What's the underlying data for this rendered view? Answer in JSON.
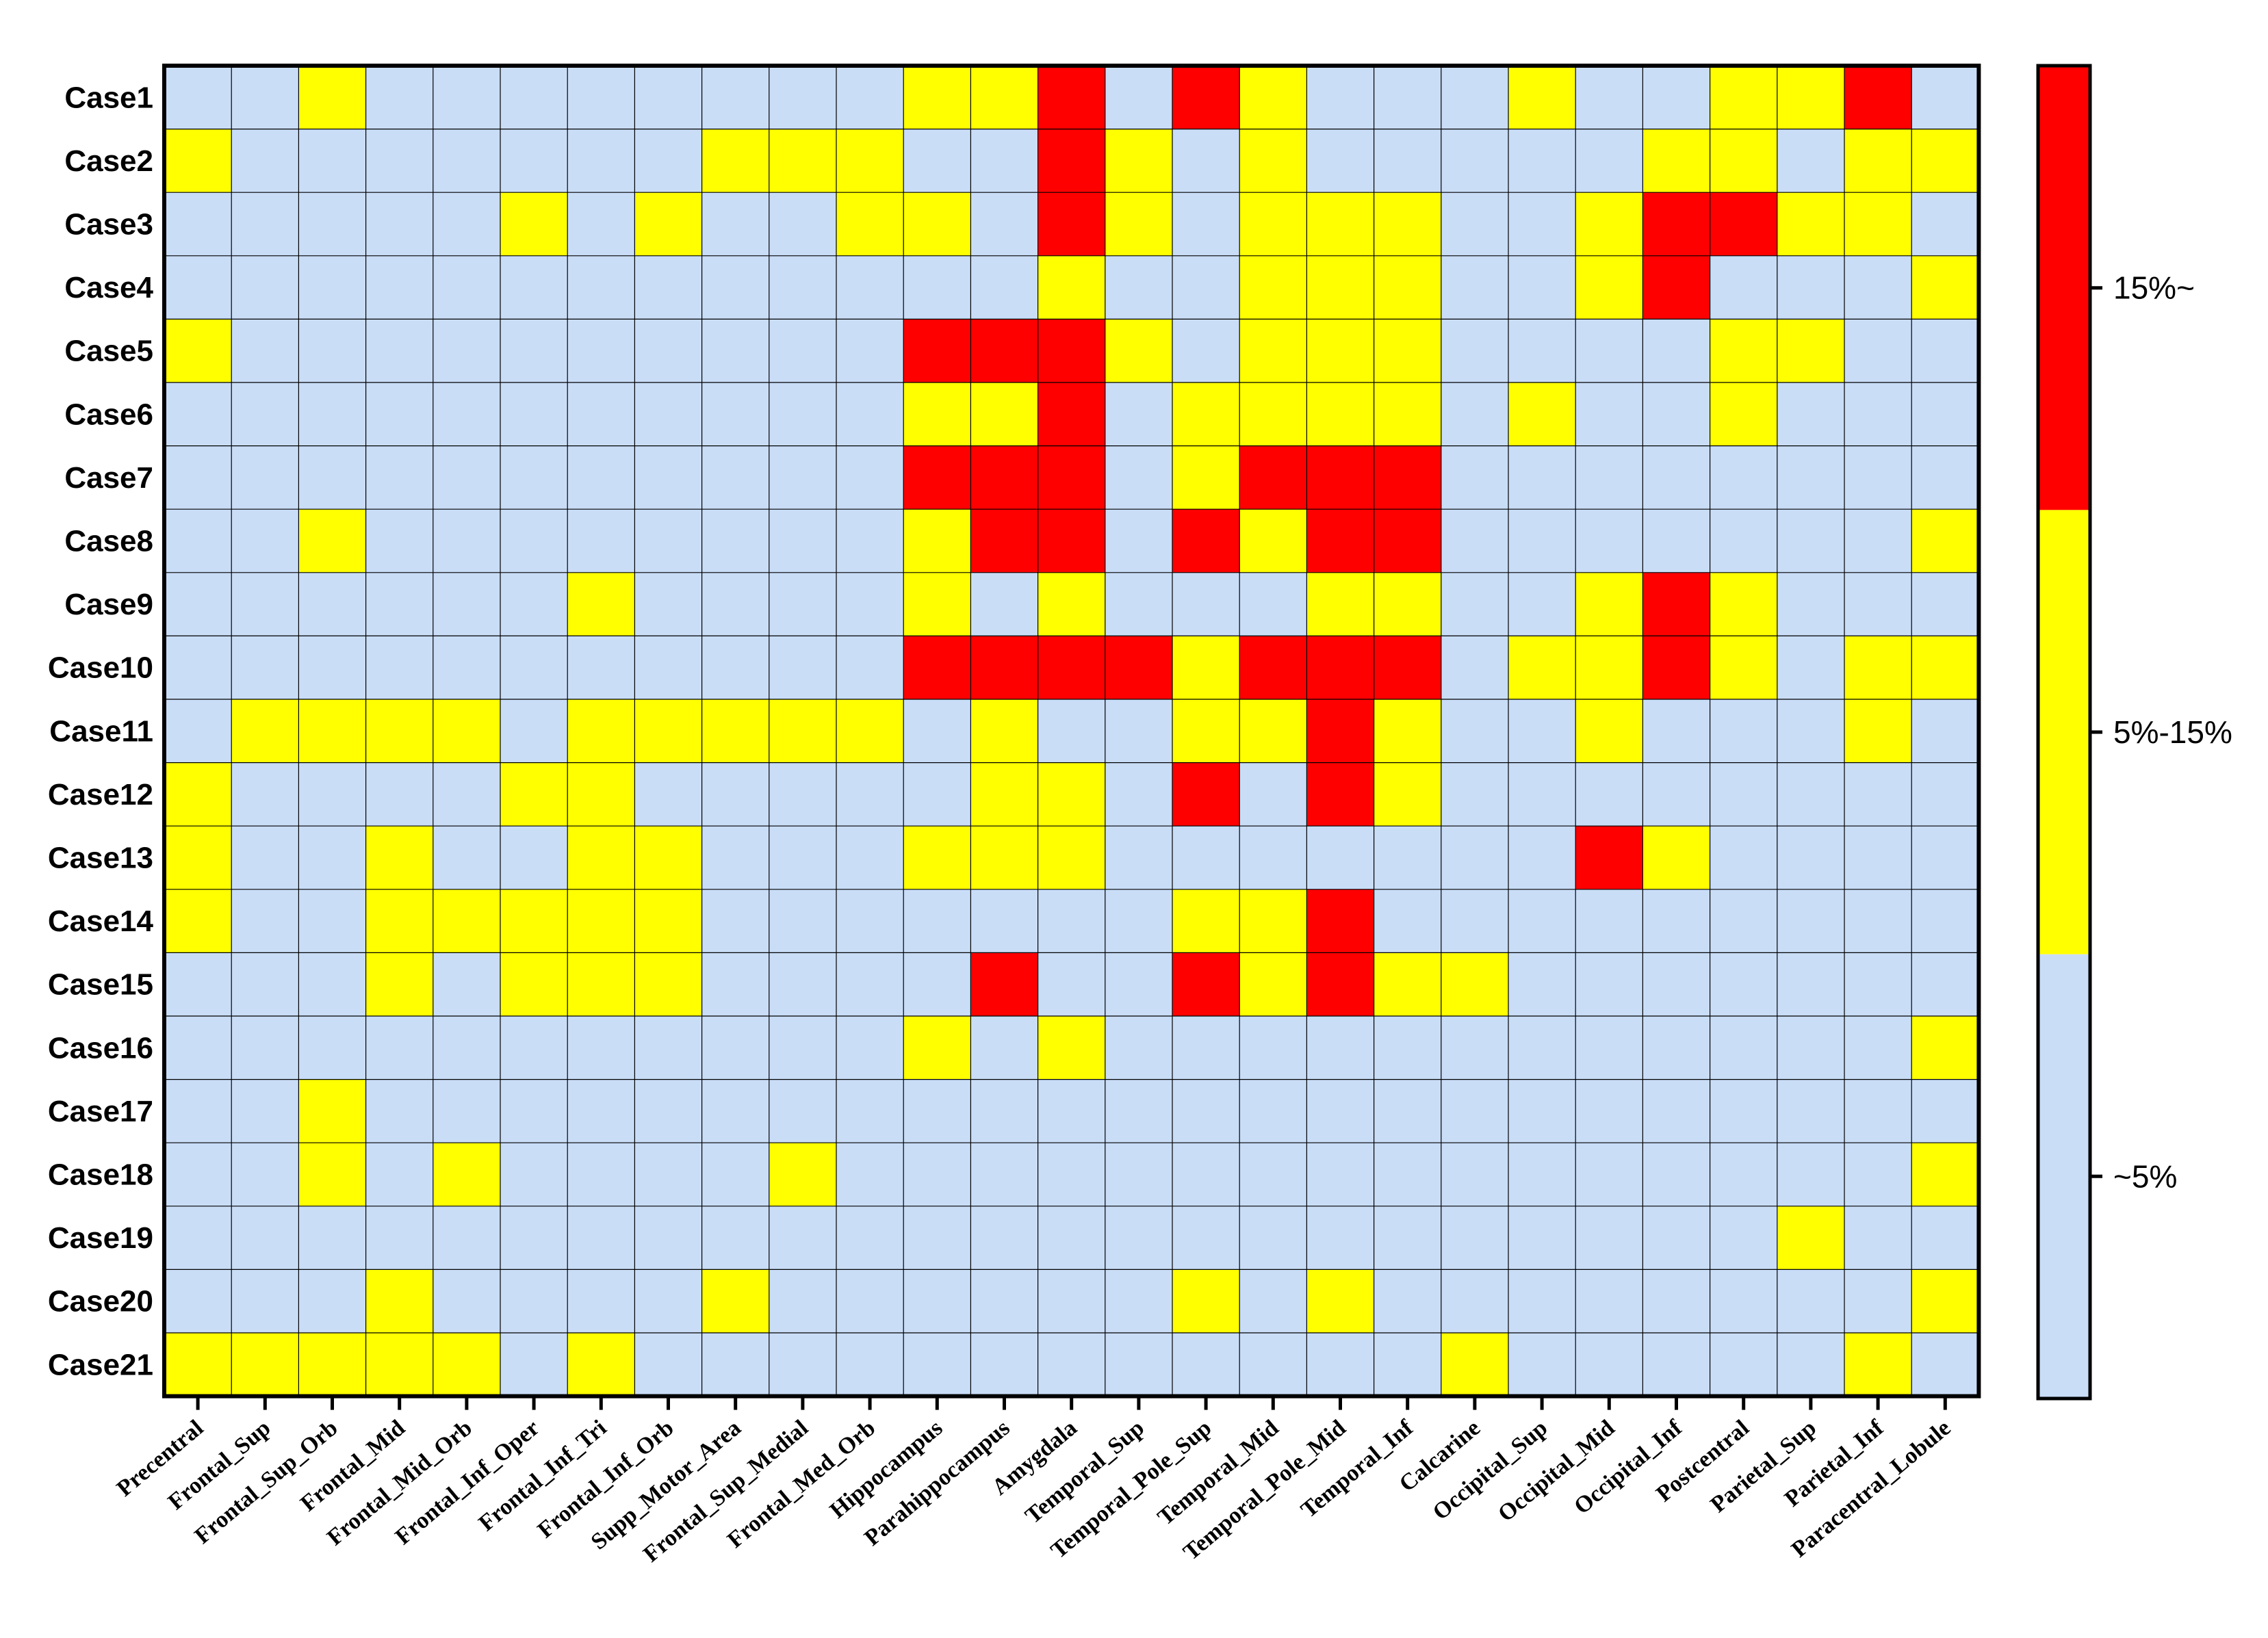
{
  "chart_data": {
    "type": "heatmap",
    "rows": [
      "Case1",
      "Case2",
      "Case3",
      "Case4",
      "Case5",
      "Case6",
      "Case7",
      "Case8",
      "Case9",
      "Case10",
      "Case11",
      "Case12",
      "Case13",
      "Case14",
      "Case15",
      "Case16",
      "Case17",
      "Case18",
      "Case19",
      "Case20",
      "Case21"
    ],
    "columns": [
      "Precentral",
      "Frontal_Sup",
      "Frontal_Sup_Orb",
      "Frontal_Mid",
      "Frontal_Mid_Orb",
      "Frontal_Inf_Oper",
      "Frontal_Inf_Tri",
      "Frontal_Inf_Orb",
      "Supp_Motor_Area",
      "Frontal_Sup_Medial",
      "Frontal_Med_Orb",
      "Hippocampus",
      "Parahippocampus",
      "Amygdala",
      "Temporal_Sup",
      "Temporal_Pole_Sup",
      "Temporal_Mid",
      "Temporal_Pole_Mid",
      "Temporal_Inf",
      "Calcarine",
      "Occipital_Sup",
      "Occipital_Mid",
      "Occipital_Inf",
      "Postcentral",
      "Parietal_Sup",
      "Parietal_Inf",
      "Paracentral_Lobule"
    ],
    "values": [
      [
        0,
        0,
        1,
        0,
        0,
        0,
        0,
        0,
        0,
        0,
        0,
        1,
        1,
        2,
        0,
        2,
        1,
        0,
        0,
        0,
        1,
        0,
        0,
        1,
        1,
        2,
        0
      ],
      [
        1,
        0,
        0,
        0,
        0,
        0,
        0,
        0,
        1,
        1,
        1,
        0,
        0,
        2,
        1,
        0,
        1,
        0,
        0,
        0,
        0,
        0,
        1,
        1,
        0,
        1,
        1
      ],
      [
        0,
        0,
        0,
        0,
        0,
        1,
        0,
        1,
        0,
        0,
        1,
        1,
        0,
        2,
        1,
        0,
        1,
        1,
        1,
        0,
        0,
        1,
        2,
        2,
        1,
        1,
        0
      ],
      [
        0,
        0,
        0,
        0,
        0,
        0,
        0,
        0,
        0,
        0,
        0,
        0,
        0,
        1,
        0,
        0,
        1,
        1,
        1,
        0,
        0,
        1,
        2,
        0,
        0,
        0,
        1
      ],
      [
        1,
        0,
        0,
        0,
        0,
        0,
        0,
        0,
        0,
        0,
        0,
        2,
        2,
        2,
        1,
        0,
        1,
        1,
        1,
        0,
        0,
        0,
        0,
        1,
        1,
        0,
        0
      ],
      [
        0,
        0,
        0,
        0,
        0,
        0,
        0,
        0,
        0,
        0,
        0,
        1,
        1,
        2,
        0,
        1,
        1,
        1,
        1,
        0,
        1,
        0,
        0,
        1,
        0,
        0,
        0
      ],
      [
        0,
        0,
        0,
        0,
        0,
        0,
        0,
        0,
        0,
        0,
        0,
        2,
        2,
        2,
        0,
        1,
        2,
        2,
        2,
        0,
        0,
        0,
        0,
        0,
        0,
        0,
        0
      ],
      [
        0,
        0,
        1,
        0,
        0,
        0,
        0,
        0,
        0,
        0,
        0,
        1,
        2,
        2,
        0,
        2,
        1,
        2,
        2,
        0,
        0,
        0,
        0,
        0,
        0,
        0,
        1
      ],
      [
        0,
        0,
        0,
        0,
        0,
        0,
        1,
        0,
        0,
        0,
        0,
        1,
        0,
        1,
        0,
        0,
        0,
        1,
        1,
        0,
        0,
        1,
        2,
        1,
        0,
        0,
        0
      ],
      [
        0,
        0,
        0,
        0,
        0,
        0,
        0,
        0,
        0,
        0,
        0,
        2,
        2,
        2,
        2,
        1,
        2,
        2,
        2,
        0,
        1,
        1,
        2,
        1,
        0,
        1,
        1
      ],
      [
        0,
        1,
        1,
        1,
        1,
        0,
        1,
        1,
        1,
        1,
        1,
        0,
        1,
        0,
        0,
        1,
        1,
        2,
        1,
        0,
        0,
        1,
        0,
        0,
        0,
        1,
        0
      ],
      [
        1,
        0,
        0,
        0,
        0,
        1,
        1,
        0,
        0,
        0,
        0,
        0,
        1,
        1,
        0,
        2,
        0,
        2,
        1,
        0,
        0,
        0,
        0,
        0,
        0,
        0,
        0
      ],
      [
        1,
        0,
        0,
        1,
        0,
        0,
        1,
        1,
        0,
        0,
        0,
        1,
        1,
        1,
        0,
        0,
        0,
        0,
        0,
        0,
        0,
        2,
        1,
        0,
        0,
        0,
        0
      ],
      [
        1,
        0,
        0,
        1,
        1,
        1,
        1,
        1,
        0,
        0,
        0,
        0,
        0,
        0,
        0,
        1,
        1,
        2,
        0,
        0,
        0,
        0,
        0,
        0,
        0,
        0,
        0
      ],
      [
        0,
        0,
        0,
        1,
        0,
        1,
        1,
        1,
        0,
        0,
        0,
        0,
        2,
        0,
        0,
        2,
        1,
        2,
        1,
        1,
        0,
        0,
        0,
        0,
        0,
        0,
        0
      ],
      [
        0,
        0,
        0,
        0,
        0,
        0,
        0,
        0,
        0,
        0,
        0,
        1,
        0,
        1,
        0,
        0,
        0,
        0,
        0,
        0,
        0,
        0,
        0,
        0,
        0,
        0,
        1
      ],
      [
        0,
        0,
        1,
        0,
        0,
        0,
        0,
        0,
        0,
        0,
        0,
        0,
        0,
        0,
        0,
        0,
        0,
        0,
        0,
        0,
        0,
        0,
        0,
        0,
        0,
        0,
        0
      ],
      [
        0,
        0,
        1,
        0,
        1,
        0,
        0,
        0,
        0,
        1,
        0,
        0,
        0,
        0,
        0,
        0,
        0,
        0,
        0,
        0,
        0,
        0,
        0,
        0,
        0,
        0,
        1
      ],
      [
        0,
        0,
        0,
        0,
        0,
        0,
        0,
        0,
        0,
        0,
        0,
        0,
        0,
        0,
        0,
        0,
        0,
        0,
        0,
        0,
        0,
        0,
        0,
        0,
        1,
        0,
        0
      ],
      [
        0,
        0,
        0,
        1,
        0,
        0,
        0,
        0,
        1,
        0,
        0,
        0,
        0,
        0,
        0,
        1,
        0,
        1,
        0,
        0,
        0,
        0,
        0,
        0,
        0,
        0,
        1
      ],
      [
        1,
        1,
        1,
        1,
        1,
        0,
        1,
        0,
        0,
        0,
        0,
        0,
        0,
        0,
        0,
        0,
        0,
        0,
        0,
        1,
        0,
        0,
        0,
        0,
        0,
        1,
        0
      ]
    ],
    "legend": {
      "levels": [
        {
          "label": "~5%",
          "color": "#c9ddf7"
        },
        {
          "label": "5%-15%",
          "color": "#ffff00"
        },
        {
          "label": "15%~",
          "color": "#ff0000"
        }
      ],
      "placement": "right"
    },
    "grid": true
  }
}
